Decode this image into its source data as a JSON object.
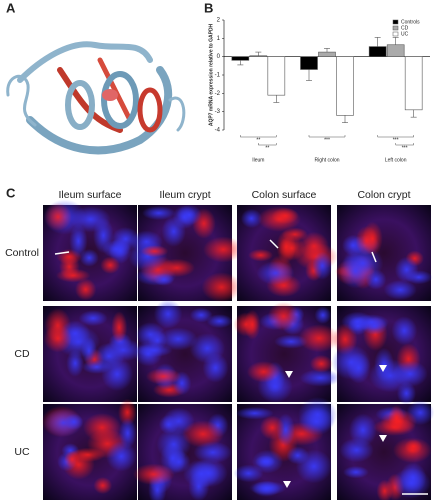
{
  "panels": {
    "a": "A",
    "b": "B",
    "c": "C"
  },
  "chart_data": {
    "type": "bar",
    "ylabel": "AQP7 mRNA expression relative to GAPDH",
    "categories": [
      "Ileum",
      "Right colon",
      "Left colon"
    ],
    "series": [
      {
        "name": "Controls",
        "color": "#000000",
        "values": [
          -0.2,
          -0.7,
          0.55
        ],
        "errors": [
          0.25,
          0.6,
          0.5
        ]
      },
      {
        "name": "CD",
        "color": "#aaaaaa",
        "values": [
          0.05,
          0.25,
          0.65
        ],
        "errors": [
          0.2,
          0.2,
          0.4
        ]
      },
      {
        "name": "UC",
        "color": "#ffffff",
        "values": [
          -2.1,
          -3.2,
          -2.9
        ],
        "errors": [
          0.4,
          0.4,
          0.4
        ]
      }
    ],
    "significance": [
      [
        "**",
        "**"
      ],
      [
        "***"
      ],
      [
        "***",
        "***"
      ]
    ],
    "ylim": [
      -4,
      2
    ],
    "yticks": [
      -4,
      -3,
      -2,
      -1,
      0,
      1,
      2
    ],
    "legend": "upper right"
  },
  "micrographs": {
    "columns": [
      "Ileum surface",
      "Ileum crypt",
      "Colon surface",
      "Colon crypt"
    ],
    "rows": [
      "Control",
      "CD",
      "UC"
    ]
  }
}
